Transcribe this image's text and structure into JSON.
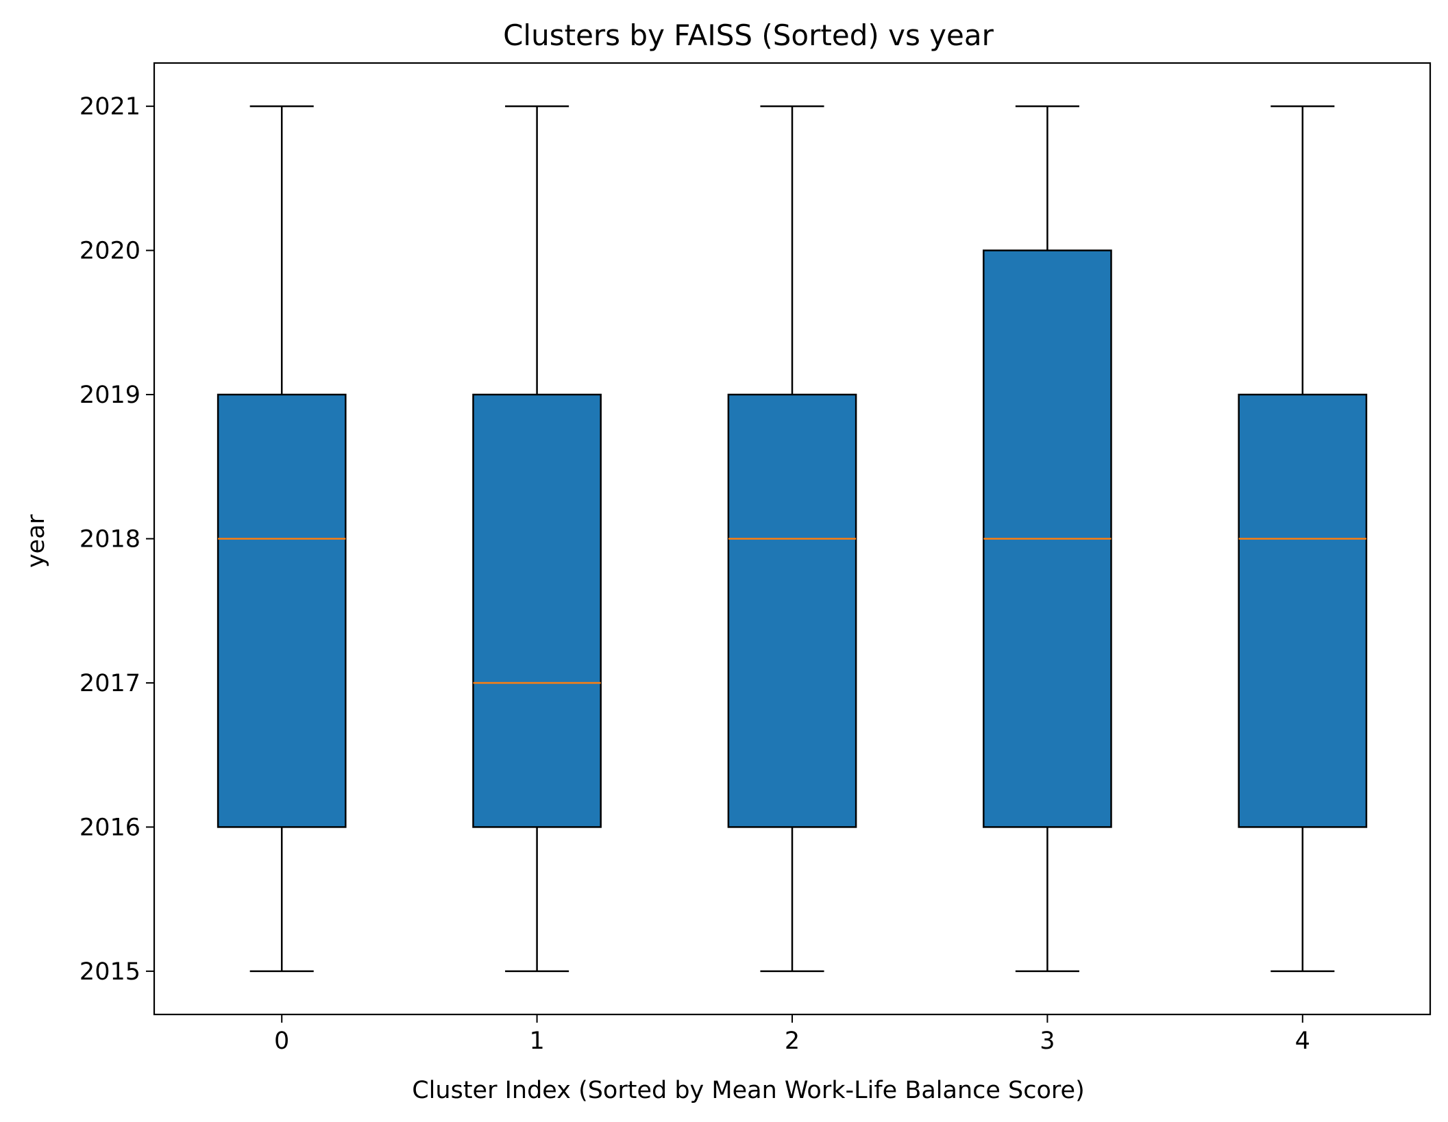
{
  "chart_data": {
    "type": "box",
    "title": "Clusters by FAISS (Sorted) vs year",
    "xlabel": "Cluster Index (Sorted by Mean Work-Life Balance Score)",
    "ylabel": "year",
    "categories": [
      "0",
      "1",
      "2",
      "3",
      "4"
    ],
    "boxes": [
      {
        "category": "0",
        "whisker_low": 2015,
        "q1": 2016,
        "median": 2018,
        "q3": 2019,
        "whisker_high": 2021
      },
      {
        "category": "1",
        "whisker_low": 2015,
        "q1": 2016,
        "median": 2017,
        "q3": 2019,
        "whisker_high": 2021
      },
      {
        "category": "2",
        "whisker_low": 2015,
        "q1": 2016,
        "median": 2018,
        "q3": 2019,
        "whisker_high": 2021
      },
      {
        "category": "3",
        "whisker_low": 2015,
        "q1": 2016,
        "median": 2018,
        "q3": 2020,
        "whisker_high": 2021
      },
      {
        "category": "4",
        "whisker_low": 2015,
        "q1": 2016,
        "median": 2018,
        "q3": 2019,
        "whisker_high": 2021
      }
    ],
    "yticks": [
      "2015",
      "2016",
      "2017",
      "2018",
      "2019",
      "2020",
      "2021"
    ],
    "ylim": [
      2014.7,
      2021.3
    ],
    "grid": false,
    "colors": {
      "box_fill": "#1f77b4",
      "median": "#ff7f0e",
      "line": "#000000"
    }
  }
}
